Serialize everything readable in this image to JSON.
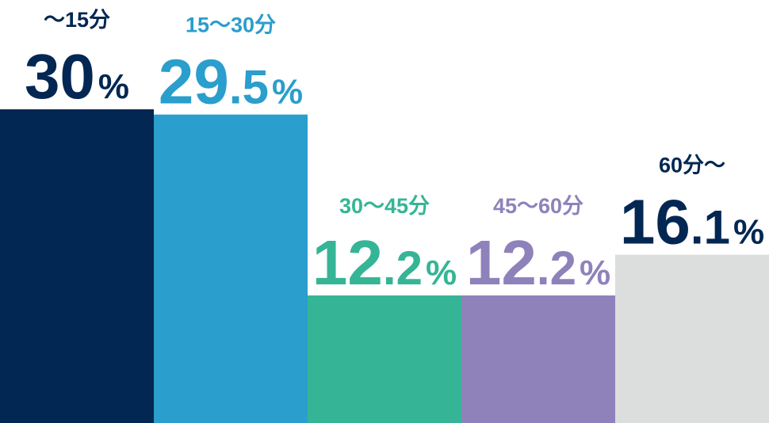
{
  "chart_data": {
    "type": "bar",
    "title": "",
    "xlabel": "",
    "ylabel": "",
    "ylim": [
      0,
      30
    ],
    "grid": false,
    "legend": "none",
    "unit": "%",
    "categories": [
      "～15分",
      "15～30分",
      "30～45分",
      "45～60分",
      "60分～"
    ],
    "values": [
      30,
      29.5,
      12.2,
      12.2,
      16.1
    ],
    "value_labels": [
      "30",
      "29.5",
      "12.2",
      "12.2",
      "16.1"
    ],
    "bar_colors": [
      "#022752",
      "#2a9ecc",
      "#35b596",
      "#8f82bb",
      "#dcdddd"
    ],
    "label_colors": [
      "#022752",
      "#2a9ecc",
      "#35b596",
      "#8f82bb",
      "#022752"
    ]
  }
}
